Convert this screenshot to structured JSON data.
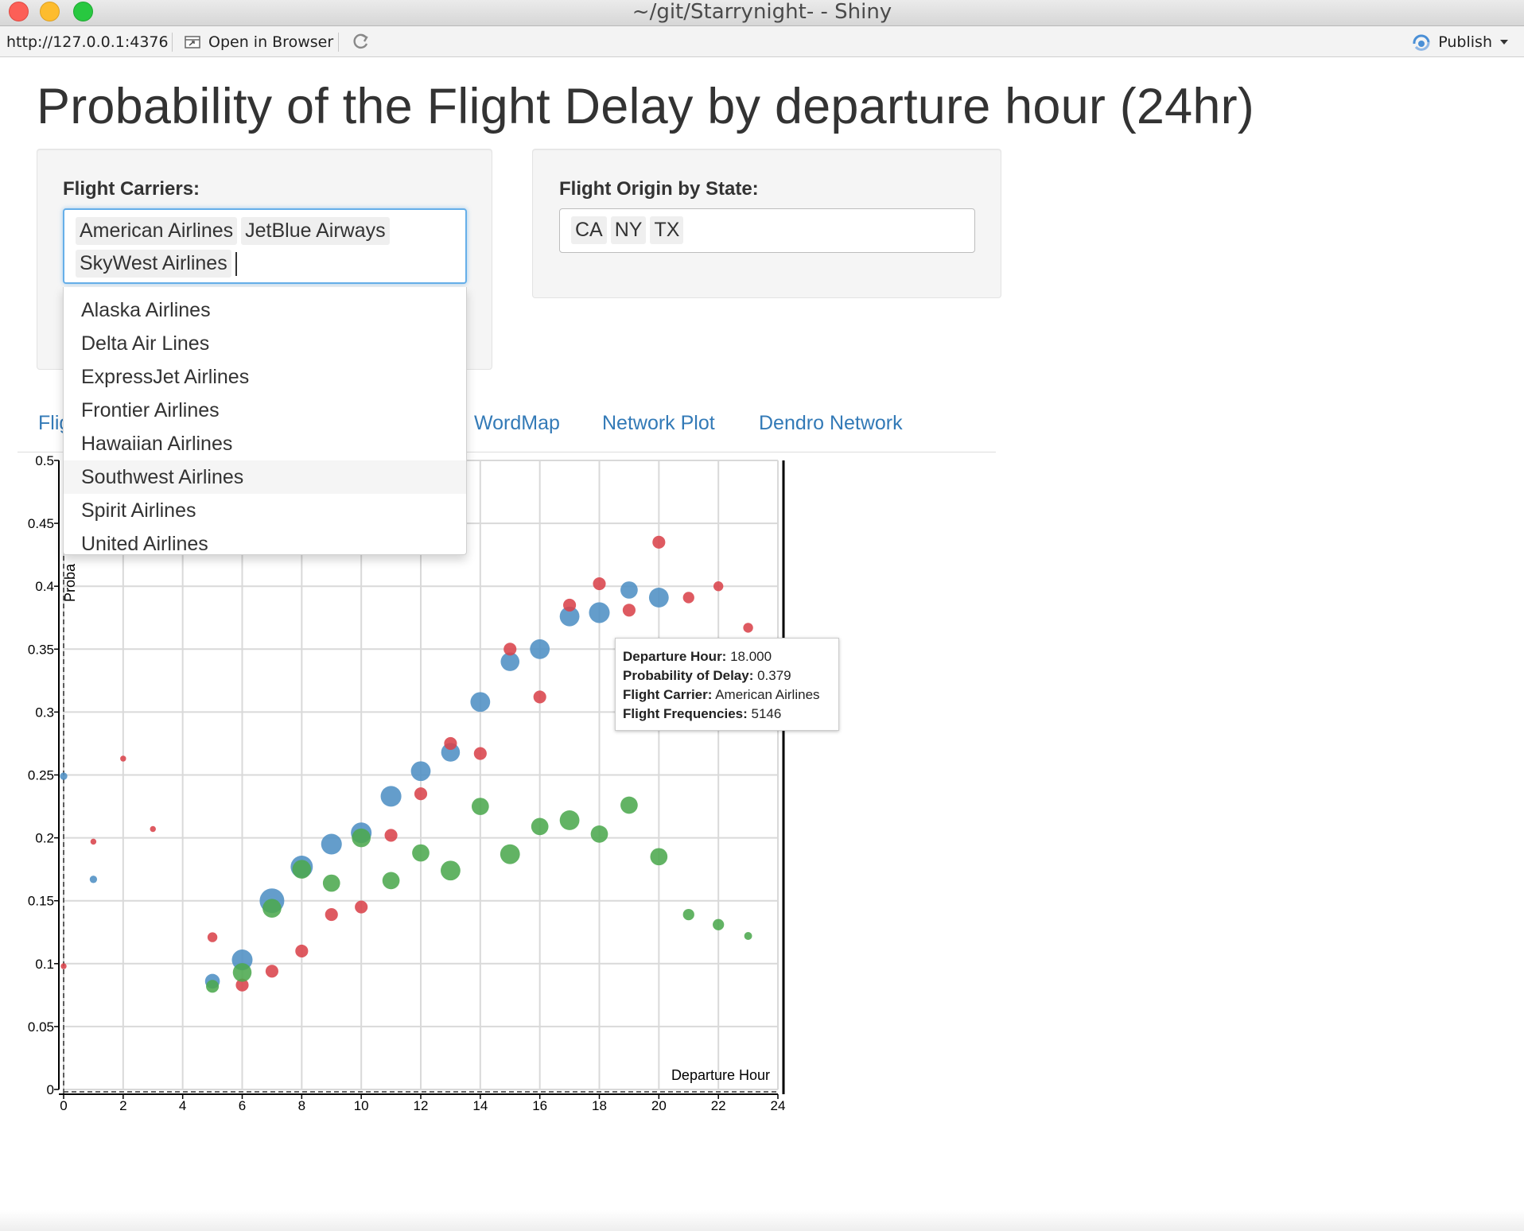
{
  "window": {
    "title": "~/git/Starrynight- - Shiny"
  },
  "toolbar": {
    "url": "http://127.0.0.1:4376",
    "open_label": "Open in Browser",
    "publish_label": "Publish"
  },
  "page": {
    "title": "Probability of the Flight Delay by departure hour (24hr)"
  },
  "carriers": {
    "label": "Flight Carriers:",
    "selected": [
      "American Airlines",
      "JetBlue Airways",
      "SkyWest Airlines"
    ],
    "options": [
      "Alaska Airlines",
      "Delta Air Lines",
      "ExpressJet Airlines",
      "Frontier Airlines",
      "Hawaiian Airlines",
      "Southwest Airlines",
      "Spirit Airlines",
      "United Airlines"
    ],
    "highlighted": "Southwest Airlines"
  },
  "origin": {
    "label": "Flight Origin by State:",
    "selected": [
      "CA",
      "NY",
      "TX"
    ]
  },
  "tabs": [
    "Flig",
    "WordMap",
    "Network Plot",
    "Dendro Network"
  ],
  "tooltip": {
    "rows": [
      {
        "key": "Departure Hour:",
        "val": " 18.000"
      },
      {
        "key": "Probability of Delay:",
        "val": " 0.379"
      },
      {
        "key": "Flight Carrier:",
        "val": " American Airlines"
      },
      {
        "key": "Flight Frequencies:",
        "val": " 5146"
      }
    ]
  },
  "chart_data": {
    "type": "scatter",
    "xlabel": "Departure Hour",
    "ylabel": "Proba",
    "xlim": [
      0,
      24
    ],
    "ylim": [
      0,
      0.5
    ],
    "xticks": [
      0,
      2,
      4,
      6,
      8,
      10,
      12,
      14,
      16,
      18,
      20,
      22,
      24
    ],
    "yticks": [
      0,
      0.05,
      0.1,
      0.15,
      0.2,
      0.25,
      0.3,
      0.35,
      0.4,
      0.45,
      0.5
    ],
    "ytick_labels": [
      "0",
      "0.05",
      "0.1",
      "0.15",
      "0.2",
      "0.25",
      "0.3",
      "0.35",
      "0.4",
      "0.45",
      "0.5"
    ],
    "grid": true,
    "series": [
      {
        "color": "#4f8fc4",
        "points": [
          {
            "x": 0,
            "y": 0.249,
            "size": 1.5
          },
          {
            "x": 1,
            "y": 0.167,
            "size": 1.5
          },
          {
            "x": 5,
            "y": 0.086,
            "size": 3
          },
          {
            "x": 6,
            "y": 0.103,
            "size": 4.2
          },
          {
            "x": 7,
            "y": 0.15,
            "size": 5
          },
          {
            "x": 8,
            "y": 0.177,
            "size": 4.5
          },
          {
            "x": 9,
            "y": 0.195,
            "size": 4.2
          },
          {
            "x": 10,
            "y": 0.204,
            "size": 4.2
          },
          {
            "x": 11,
            "y": 0.233,
            "size": 4.2
          },
          {
            "x": 12,
            "y": 0.253,
            "size": 4
          },
          {
            "x": 13,
            "y": 0.268,
            "size": 3.8
          },
          {
            "x": 14,
            "y": 0.308,
            "size": 4
          },
          {
            "x": 15,
            "y": 0.34,
            "size": 3.8
          },
          {
            "x": 16,
            "y": 0.35,
            "size": 4
          },
          {
            "x": 17,
            "y": 0.376,
            "size": 4
          },
          {
            "x": 18,
            "y": 0.379,
            "size": 4.2
          },
          {
            "x": 19,
            "y": 0.397,
            "size": 3.5
          },
          {
            "x": 20,
            "y": 0.391,
            "size": 4
          }
        ]
      },
      {
        "color": "#d9434b",
        "points": [
          {
            "x": 0,
            "y": 0.098,
            "size": 1.2
          },
          {
            "x": 1,
            "y": 0.197,
            "size": 1.2
          },
          {
            "x": 2,
            "y": 0.263,
            "size": 1.2
          },
          {
            "x": 3,
            "y": 0.207,
            "size": 1.2
          },
          {
            "x": 5,
            "y": 0.121,
            "size": 2
          },
          {
            "x": 6,
            "y": 0.083,
            "size": 2.6
          },
          {
            "x": 7,
            "y": 0.094,
            "size": 2.6
          },
          {
            "x": 8,
            "y": 0.11,
            "size": 2.6
          },
          {
            "x": 9,
            "y": 0.139,
            "size": 2.6
          },
          {
            "x": 10,
            "y": 0.145,
            "size": 2.6
          },
          {
            "x": 11,
            "y": 0.202,
            "size": 2.6
          },
          {
            "x": 12,
            "y": 0.235,
            "size": 2.6
          },
          {
            "x": 13,
            "y": 0.275,
            "size": 2.6
          },
          {
            "x": 14,
            "y": 0.267,
            "size": 2.6
          },
          {
            "x": 15,
            "y": 0.35,
            "size": 2.6
          },
          {
            "x": 16,
            "y": 0.312,
            "size": 2.6
          },
          {
            "x": 17,
            "y": 0.385,
            "size": 2.6
          },
          {
            "x": 18,
            "y": 0.402,
            "size": 2.6
          },
          {
            "x": 19,
            "y": 0.381,
            "size": 2.6
          },
          {
            "x": 20,
            "y": 0.435,
            "size": 2.6
          },
          {
            "x": 21,
            "y": 0.391,
            "size": 2.3
          },
          {
            "x": 22,
            "y": 0.4,
            "size": 2
          },
          {
            "x": 23,
            "y": 0.367,
            "size": 2
          }
        ]
      },
      {
        "color": "#4ca94e",
        "points": [
          {
            "x": 5,
            "y": 0.082,
            "size": 2.6
          },
          {
            "x": 6,
            "y": 0.093,
            "size": 3.8
          },
          {
            "x": 7,
            "y": 0.144,
            "size": 3.8
          },
          {
            "x": 8,
            "y": 0.175,
            "size": 3.8
          },
          {
            "x": 9,
            "y": 0.164,
            "size": 3.5
          },
          {
            "x": 10,
            "y": 0.2,
            "size": 3.8
          },
          {
            "x": 11,
            "y": 0.166,
            "size": 3.5
          },
          {
            "x": 12,
            "y": 0.188,
            "size": 3.5
          },
          {
            "x": 13,
            "y": 0.174,
            "size": 4
          },
          {
            "x": 14,
            "y": 0.225,
            "size": 3.5
          },
          {
            "x": 15,
            "y": 0.187,
            "size": 4
          },
          {
            "x": 16,
            "y": 0.209,
            "size": 3.5
          },
          {
            "x": 17,
            "y": 0.214,
            "size": 4
          },
          {
            "x": 18,
            "y": 0.203,
            "size": 3.5
          },
          {
            "x": 19,
            "y": 0.226,
            "size": 3.5
          },
          {
            "x": 20,
            "y": 0.185,
            "size": 3.5
          },
          {
            "x": 21,
            "y": 0.139,
            "size": 2.3
          },
          {
            "x": 22,
            "y": 0.131,
            "size": 2.3
          },
          {
            "x": 23,
            "y": 0.122,
            "size": 1.6
          }
        ]
      }
    ]
  }
}
